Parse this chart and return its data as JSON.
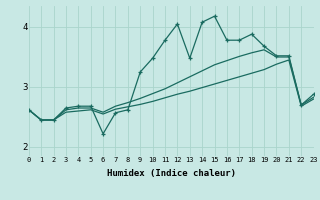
{
  "xlabel": "Humidex (Indice chaleur)",
  "bg_color": "#c8e8e4",
  "grid_color": "#aad4cc",
  "line_color": "#1a6b60",
  "xlim": [
    0,
    23
  ],
  "ylim": [
    1.85,
    4.35
  ],
  "xticks": [
    0,
    1,
    2,
    3,
    4,
    5,
    6,
    7,
    8,
    9,
    10,
    11,
    12,
    13,
    14,
    15,
    16,
    17,
    18,
    19,
    20,
    21,
    22,
    23
  ],
  "yticks": [
    2,
    3,
    4
  ],
  "line1_x": [
    0,
    1,
    2,
    3,
    4,
    5,
    6,
    7,
    8,
    9,
    10,
    11,
    12,
    13,
    14,
    15,
    16,
    17,
    18,
    19,
    20,
    21,
    22,
    23
  ],
  "line1_y": [
    2.62,
    2.45,
    2.45,
    2.58,
    2.6,
    2.62,
    2.55,
    2.63,
    2.67,
    2.71,
    2.76,
    2.82,
    2.88,
    2.93,
    2.99,
    3.05,
    3.11,
    3.17,
    3.23,
    3.29,
    3.38,
    3.45,
    2.68,
    2.8
  ],
  "line2_x": [
    0,
    1,
    2,
    3,
    4,
    5,
    6,
    7,
    8,
    9,
    10,
    11,
    12,
    13,
    14,
    15,
    16,
    17,
    18,
    19,
    20,
    21,
    22,
    23
  ],
  "line2_y": [
    2.62,
    2.45,
    2.45,
    2.62,
    2.65,
    2.65,
    2.58,
    2.68,
    2.74,
    2.81,
    2.89,
    2.97,
    3.07,
    3.17,
    3.27,
    3.37,
    3.44,
    3.51,
    3.57,
    3.62,
    3.5,
    3.5,
    2.7,
    2.83
  ],
  "line3_x": [
    0,
    1,
    2,
    3,
    4,
    5,
    6,
    7,
    8,
    9,
    10,
    11,
    12,
    13,
    14,
    15,
    16,
    17,
    18,
    19,
    20,
    21,
    22,
    23
  ],
  "line3_y": [
    2.62,
    2.45,
    2.45,
    2.65,
    2.68,
    2.68,
    2.22,
    2.57,
    2.62,
    3.25,
    3.48,
    3.78,
    4.05,
    3.48,
    4.08,
    4.18,
    3.78,
    3.78,
    3.88,
    3.68,
    3.52,
    3.52,
    2.7,
    2.88
  ]
}
